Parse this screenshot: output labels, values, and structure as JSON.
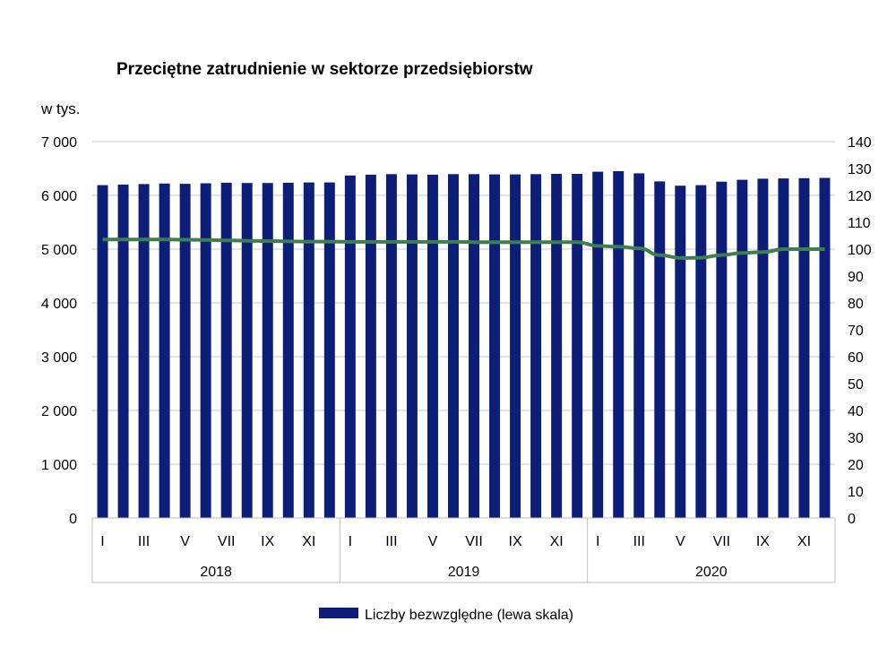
{
  "chart_data": {
    "type": "bar",
    "title": "Przeciętne zatrudnienie w sektorze przedsiębiorstw",
    "left_axis_unit": "w tys.",
    "ylim_left": [
      0,
      7000
    ],
    "ylim_right": [
      0,
      140
    ],
    "y_ticks_left": [
      "0",
      "1 000",
      "2 000",
      "3 000",
      "4 000",
      "5 000",
      "6 000",
      "7 000"
    ],
    "y_ticks_right": [
      "0",
      "10",
      "20",
      "30",
      "40",
      "50",
      "60",
      "70",
      "80",
      "90",
      "100",
      "110",
      "120",
      "130",
      "140"
    ],
    "month_labels": [
      "I",
      "",
      "III",
      "",
      "V",
      "",
      "VII",
      "",
      "IX",
      "",
      "XI",
      ""
    ],
    "years": [
      "2018",
      "2019",
      "2020"
    ],
    "grid": "horizontal",
    "legend_position": "bottom",
    "series": [
      {
        "name": "Liczby bezwzględne (lewa skala)",
        "axis": "left",
        "kind": "bar",
        "color": "#0d1e78",
        "values": [
          6190,
          6200,
          6210,
          6220,
          6215,
          6225,
          6235,
          6230,
          6230,
          6235,
          6240,
          6240,
          6370,
          6385,
          6395,
          6390,
          6385,
          6395,
          6395,
          6390,
          6390,
          6395,
          6400,
          6400,
          6440,
          6450,
          6410,
          6260,
          6180,
          6190,
          6255,
          6290,
          6310,
          6315,
          6320,
          6325
        ]
      },
      {
        "axis": "right",
        "kind": "line",
        "color": "#3f7f4f",
        "values": [
          103.6,
          103.6,
          103.6,
          103.6,
          103.5,
          103.4,
          103.3,
          103.1,
          103.0,
          102.9,
          102.8,
          102.8,
          102.7,
          102.7,
          102.7,
          102.7,
          102.7,
          102.7,
          102.6,
          102.6,
          102.6,
          102.6,
          102.6,
          102.6,
          101.2,
          100.9,
          100.3,
          97.8,
          96.7,
          96.8,
          97.8,
          98.6,
          98.9,
          100.0,
          100.0,
          100.0
        ]
      }
    ]
  }
}
